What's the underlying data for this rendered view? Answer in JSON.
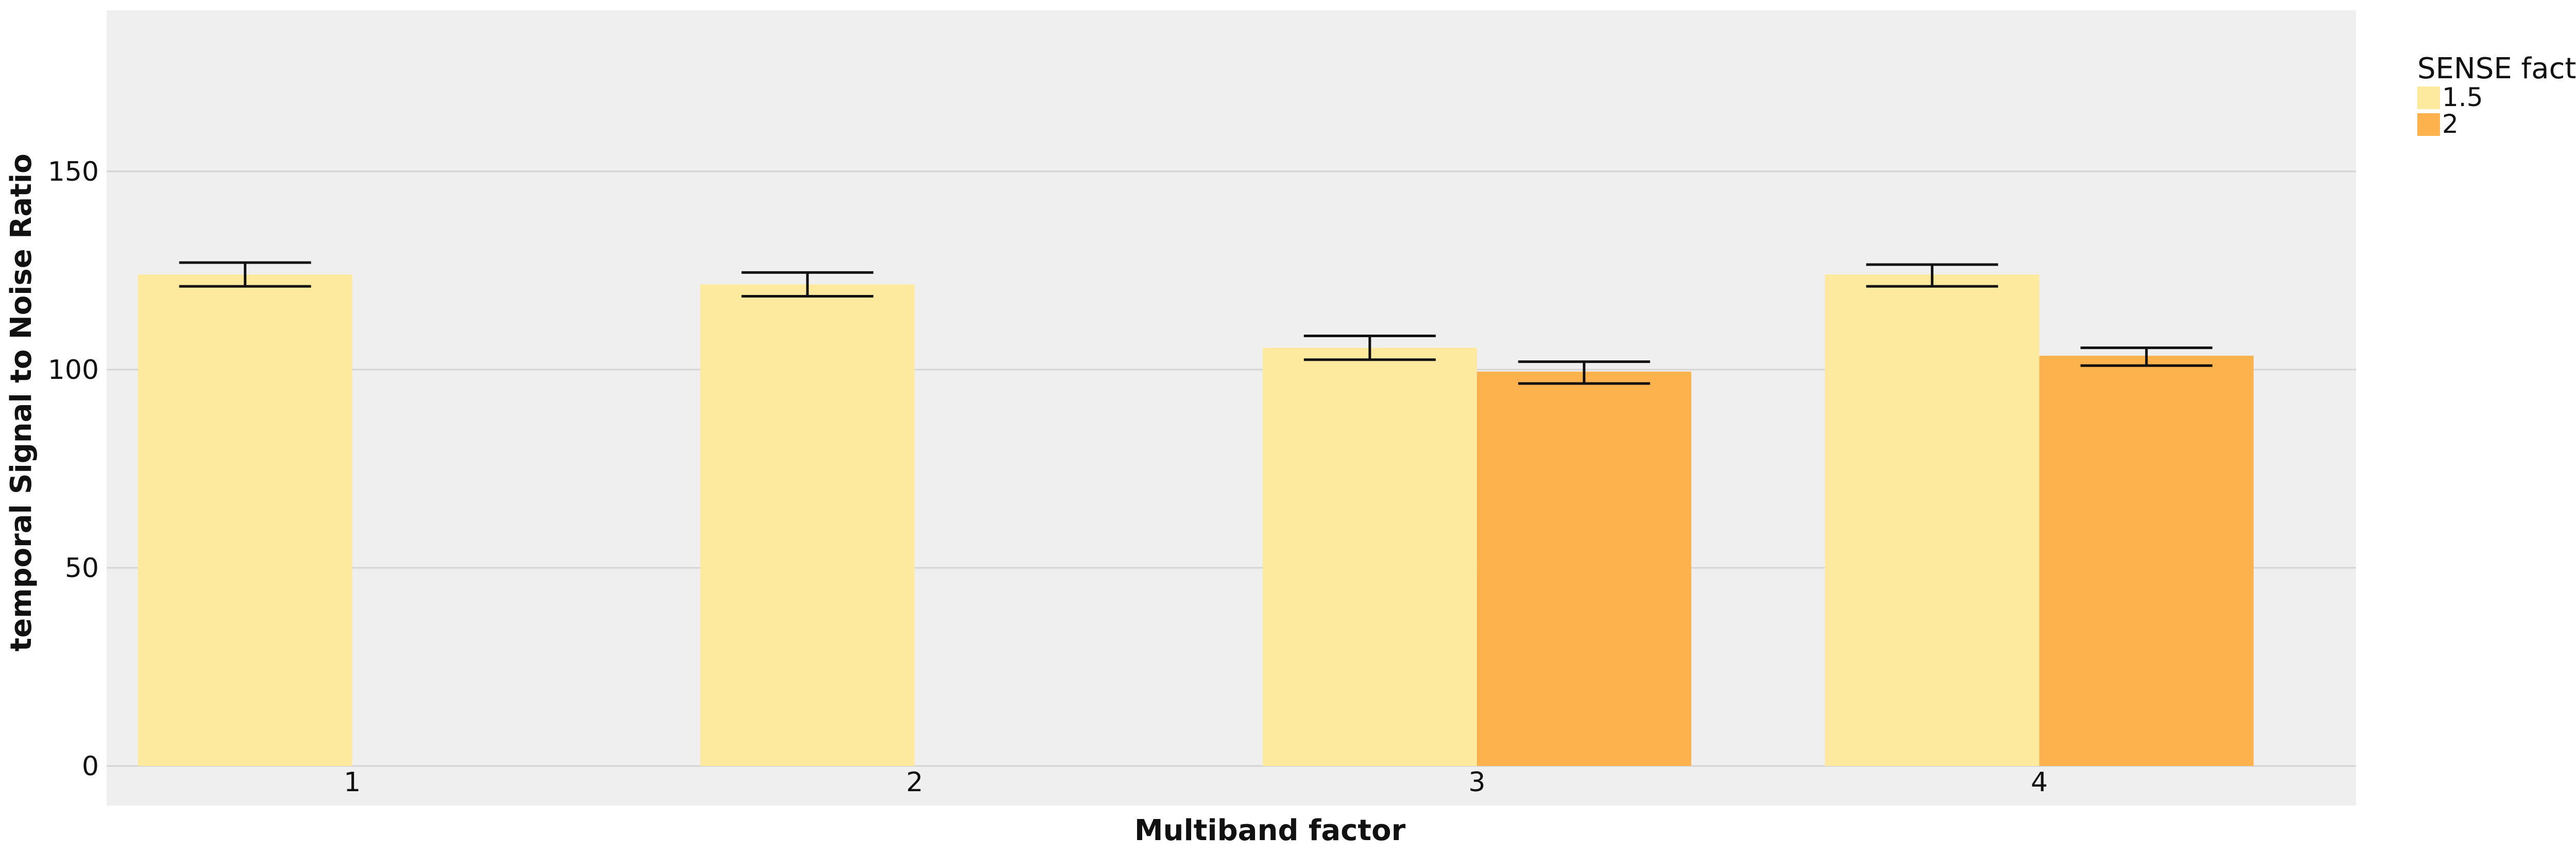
{
  "chart_data": {
    "type": "bar",
    "title": "",
    "xlabel": "Multiband factor",
    "ylabel": "temporal Signal to Noise Ratio",
    "categories": [
      "1",
      "2",
      "3",
      "4"
    ],
    "ylim": [
      0,
      190
    ],
    "yticks": [
      0,
      50,
      100,
      150
    ],
    "grid": true,
    "legend": {
      "title": "SENSE factor",
      "position": "right"
    },
    "series": [
      {
        "name": "1.5",
        "color": "#FEEA9F",
        "values": [
          124,
          121.5,
          105.5,
          124
        ],
        "error_low": [
          121,
          118.5,
          102.5,
          121
        ],
        "error_high": [
          127,
          124.5,
          108.5,
          126.5
        ]
      },
      {
        "name": "2",
        "color": "#FDB24E",
        "values": [
          null,
          null,
          99.5,
          103.5
        ],
        "error_low": [
          null,
          null,
          96.5,
          101
        ],
        "error_high": [
          null,
          null,
          102,
          105.5
        ]
      }
    ]
  },
  "colors": {
    "panel": "#EFEFEF",
    "grid": "#D4D4D4",
    "error_bar": "#111111"
  }
}
